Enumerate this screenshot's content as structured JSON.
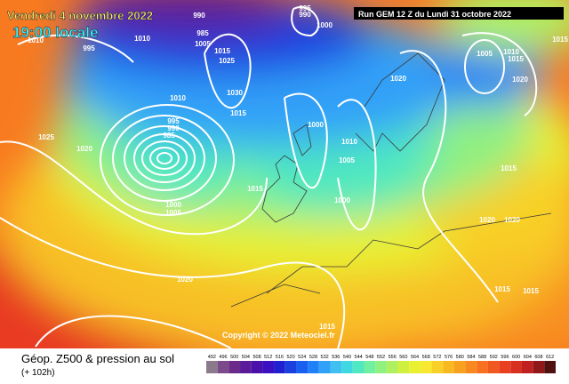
{
  "header": {
    "date": "Vendredi 4 novembre 2022",
    "time": "19:00 locale",
    "run": "Run GEM 12 Z du Lundi 31 octobre 2022"
  },
  "map": {
    "copyright": "Copyright © 2022 Meteociel.fr",
    "isobar_labels": [
      1010,
      995,
      1010,
      990,
      985,
      1005,
      1015,
      1025,
      1030,
      1015,
      1010,
      995,
      990,
      985,
      1000,
      1005,
      1025,
      1020,
      1000,
      1010,
      1005,
      1000,
      1015,
      1020,
      1005,
      1010,
      1015,
      1020,
      1015,
      1020,
      1020,
      1015,
      1015,
      1020,
      1015,
      1000,
      995,
      990,
      1015
    ]
  },
  "footer": {
    "title": "Géop. Z500 & pression au sol",
    "lead": "(+ 102h)",
    "scale_labels": [
      492,
      496,
      500,
      504,
      508,
      512,
      516,
      520,
      524,
      528,
      532,
      536,
      540,
      544,
      548,
      552,
      556,
      560,
      564,
      568,
      572,
      576,
      580,
      584,
      588,
      592,
      596,
      600,
      604,
      608,
      612
    ],
    "scale_colors": [
      "#8a7a8a",
      "#7a4a8a",
      "#6a2a8a",
      "#5a1a9a",
      "#4a10aa",
      "#3a10c0",
      "#2020d0",
      "#1a40e0",
      "#1a60f0",
      "#2080f8",
      "#30a0f8",
      "#40c0f0",
      "#40d8e0",
      "#50e8c0",
      "#70f0a0",
      "#90f080",
      "#b0f060",
      "#d0f040",
      "#e8f030",
      "#f8e830",
      "#f8d028",
      "#f8b820",
      "#f8a020",
      "#f88820",
      "#f87020",
      "#f05820",
      "#e84020",
      "#d83020",
      "#c02020",
      "#901818",
      "#501010"
    ]
  }
}
